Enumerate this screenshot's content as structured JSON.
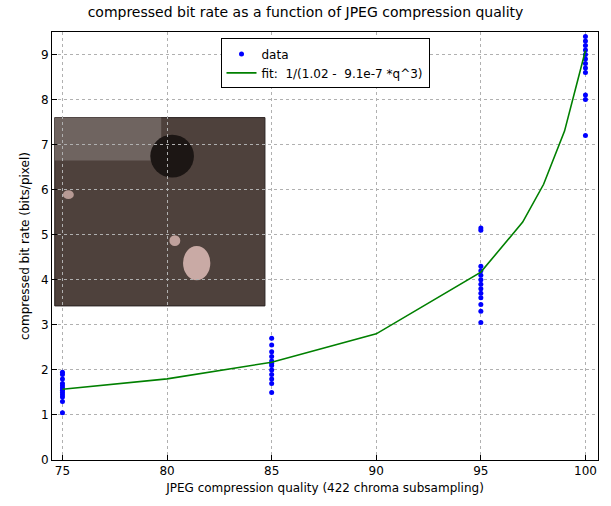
{
  "chart_data": {
    "type": "scatter",
    "title": "compressed bit rate as a function of JPEG compression quality",
    "x_label": "JPEG compression quality (422 chroma subsampling)",
    "y_label": "compressed bit rate (bits/pixel)",
    "xlim": [
      74.5,
      100.6
    ],
    "xticks": [
      75,
      80,
      85,
      90,
      95,
      100
    ],
    "ylim": [
      0,
      9.5
    ],
    "yticks": [
      0,
      1,
      2,
      3,
      4,
      5,
      6,
      7,
      8,
      9
    ],
    "grid": true,
    "legend": "upper center",
    "series": [
      {
        "name": "data",
        "type": "scatter",
        "color": "#0000ff",
        "marker": "circle",
        "x": [
          75,
          75,
          75,
          75,
          75,
          75,
          75,
          75,
          75,
          75,
          75,
          75,
          85,
          85,
          85,
          85,
          85,
          85,
          85,
          85,
          85,
          85,
          85,
          85,
          95,
          95,
          95,
          95,
          95,
          95,
          95,
          95,
          95,
          95,
          95,
          95,
          95,
          100,
          100,
          100,
          100,
          100,
          100,
          100,
          100,
          100,
          100,
          100,
          100
        ],
        "values": [
          1.05,
          1.3,
          1.4,
          1.45,
          1.5,
          1.55,
          1.6,
          1.65,
          1.7,
          1.8,
          1.9,
          1.95,
          1.5,
          1.7,
          1.8,
          1.9,
          2.0,
          2.1,
          2.15,
          2.2,
          2.3,
          2.4,
          2.55,
          2.7,
          3.05,
          3.3,
          3.45,
          3.6,
          3.7,
          3.8,
          3.9,
          4.0,
          4.1,
          4.2,
          4.3,
          5.1,
          5.15,
          7.2,
          8.0,
          8.1,
          8.6,
          8.7,
          8.8,
          8.9,
          9.0,
          9.1,
          9.2,
          9.3,
          9.4
        ]
      },
      {
        "name": "fit:  1/(1.02 -  9.1e-7 *q^3)",
        "type": "line",
        "color": "#008000",
        "line_style": "solid",
        "x": [
          75,
          80,
          85,
          90,
          95,
          97,
          98,
          99,
          100
        ],
        "values": [
          1.57,
          1.8,
          2.17,
          2.8,
          4.17,
          5.28,
          6.12,
          7.3,
          9.09
        ]
      }
    ]
  }
}
